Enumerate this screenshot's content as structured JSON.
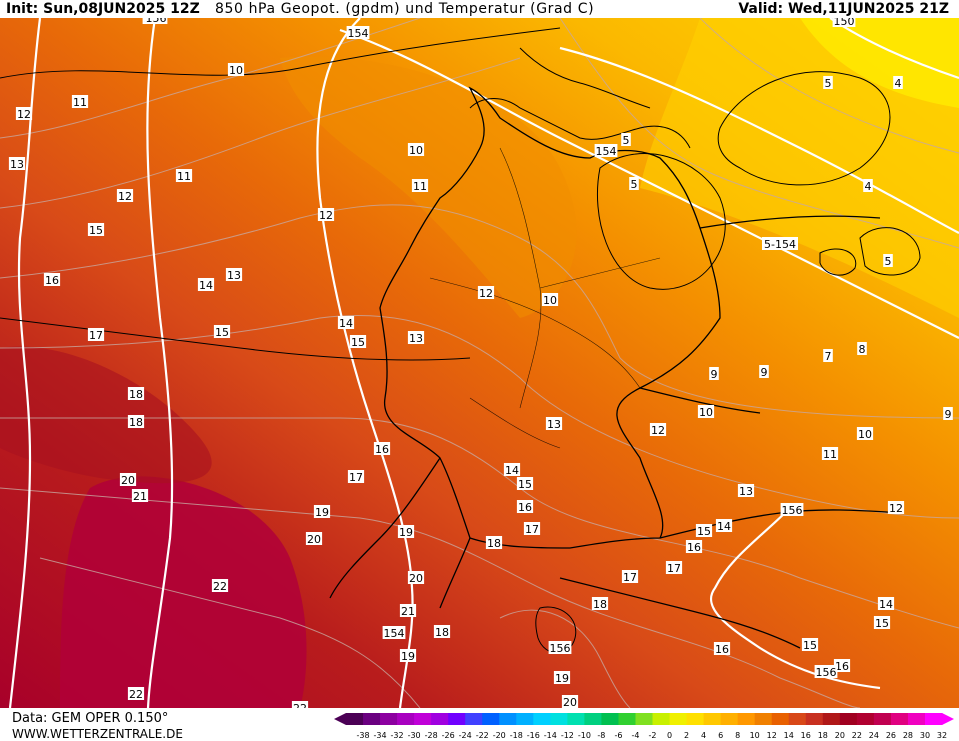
{
  "header": {
    "init": "Init: Sun,08JUN2025 12Z",
    "title": "850 hPa Geopot. (gpdm) und Temperatur (Grad C)",
    "valid": "Valid: Wed,11JUN2025 21Z"
  },
  "footer": {
    "data_source": "Data: GEM OPER 0.150°",
    "website": "WWW.WETTERZENTRALE.DE"
  },
  "legend": {
    "ticks": [
      "-38",
      "-34",
      "-32",
      "-30",
      "-28",
      "-26",
      "-24",
      "-22",
      "-20",
      "-18",
      "-16",
      "-14",
      "-12",
      "-10",
      "-8",
      "-6",
      "-4",
      "-2",
      "0",
      "2",
      "4",
      "6",
      "8",
      "10",
      "12",
      "14",
      "16",
      "18",
      "20",
      "22",
      "24",
      "26",
      "28",
      "30",
      "32"
    ],
    "colors": [
      "#4b0055",
      "#6a0080",
      "#8c00a0",
      "#a800c0",
      "#c000d8",
      "#a000e0",
      "#7000ff",
      "#4040ff",
      "#0060ff",
      "#0090ff",
      "#00b0ff",
      "#00d0ff",
      "#00e0e0",
      "#00e0b0",
      "#00d080",
      "#00c050",
      "#30d030",
      "#80e020",
      "#c8f000",
      "#f0f000",
      "#ffe000",
      "#ffc800",
      "#ffb000",
      "#ff9800",
      "#f08000",
      "#e86000",
      "#d84818",
      "#c83020",
      "#b01818",
      "#a00020",
      "#b00030",
      "#c00050",
      "#e00080",
      "#f000c0",
      "#ff00ff"
    ]
  },
  "map": {
    "geopotential_labels": [
      "154",
      "154",
      "5-154",
      "156",
      "150",
      "154",
      "156",
      "156",
      "5",
      "5",
      "5",
      "4",
      "4",
      "5",
      "154",
      "156"
    ],
    "temperature_labels": [
      "10",
      "10",
      "10",
      "10",
      "10",
      "11",
      "11",
      "11",
      "11",
      "12",
      "12",
      "12",
      "12",
      "12",
      "12",
      "13",
      "13",
      "13",
      "13",
      "13",
      "14",
      "14",
      "14",
      "14",
      "14",
      "15",
      "15",
      "15",
      "15",
      "15",
      "15",
      "16",
      "16",
      "16",
      "16",
      "17",
      "17",
      "17",
      "17",
      "17",
      "18",
      "18",
      "18",
      "18",
      "18",
      "19",
      "19",
      "19",
      "19",
      "20",
      "20",
      "20",
      "20",
      "21",
      "21",
      "22",
      "22",
      "22",
      "9",
      "9",
      "9",
      "7",
      "8",
      "16",
      "16",
      "15"
    ]
  }
}
